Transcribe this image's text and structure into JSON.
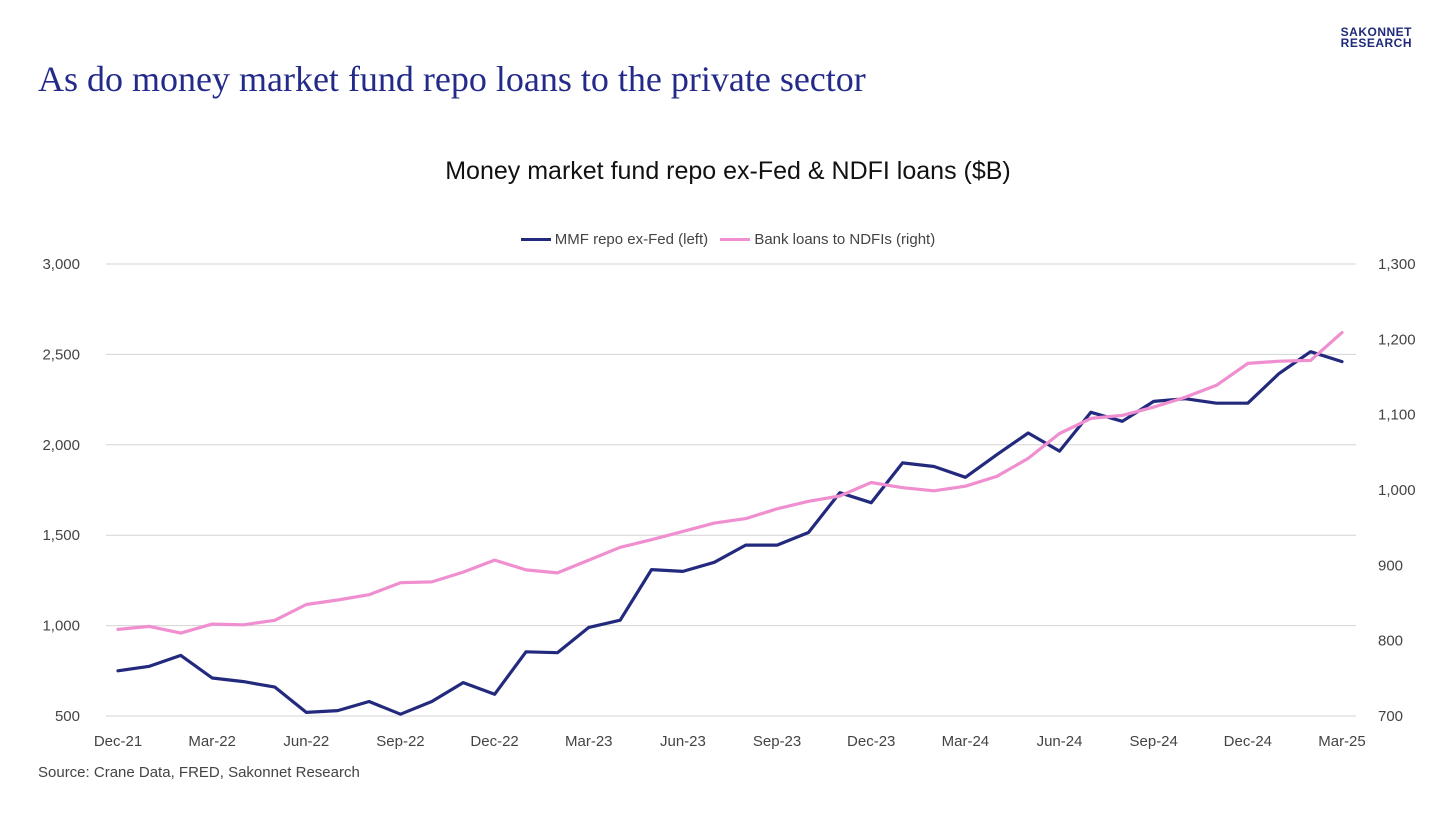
{
  "brand": {
    "line1": "SAKONNET",
    "line2": "RESEARCH"
  },
  "headline": "As do money market fund repo loans to the private sector",
  "source": "Source: Crane Data, FRED, Sakonnet Research",
  "chart_data": {
    "type": "line",
    "title": "Money market fund repo ex-Fed & NDFI loans ($B)",
    "xlabel": "",
    "ylabel": "",
    "grid": true,
    "legend_position": "top-center",
    "x": [
      "Dec-21",
      "Jan-22",
      "Feb-22",
      "Mar-22",
      "Apr-22",
      "May-22",
      "Jun-22",
      "Jul-22",
      "Aug-22",
      "Sep-22",
      "Oct-22",
      "Nov-22",
      "Dec-22",
      "Jan-23",
      "Feb-23",
      "Mar-23",
      "Apr-23",
      "May-23",
      "Jun-23",
      "Jul-23",
      "Aug-23",
      "Sep-23",
      "Oct-23",
      "Nov-23",
      "Dec-23",
      "Jan-24",
      "Feb-24",
      "Mar-24",
      "Apr-24",
      "May-24",
      "Jun-24",
      "Jul-24",
      "Aug-24",
      "Sep-24",
      "Oct-24",
      "Nov-24",
      "Dec-24",
      "Jan-25",
      "Feb-25",
      "Mar-25"
    ],
    "x_tick_labels": [
      "Dec-21",
      "Mar-22",
      "Jun-22",
      "Sep-22",
      "Dec-22",
      "Mar-23",
      "Jun-23",
      "Sep-23",
      "Dec-23",
      "Mar-24",
      "Jun-24",
      "Sep-24",
      "Dec-24",
      "Mar-25"
    ],
    "y_left": {
      "min": 500,
      "max": 3000,
      "ticks": [
        "500",
        "1,000",
        "1,500",
        "2,000",
        "2,500",
        "3,000"
      ]
    },
    "y_right": {
      "min": 700,
      "max": 1300,
      "ticks": [
        "700",
        "800",
        "900",
        "1,000",
        "1,100",
        "1,200",
        "1,300"
      ]
    },
    "series": [
      {
        "name": "MMF repo ex-Fed (left)",
        "axis": "left",
        "color": "#232a7e",
        "values": [
          750,
          775,
          835,
          710,
          690,
          660,
          520,
          530,
          580,
          510,
          580,
          685,
          620,
          855,
          850,
          990,
          1030,
          1310,
          1300,
          1350,
          1445,
          1445,
          1515,
          1735,
          1680,
          1900,
          1880,
          1820,
          1945,
          2065,
          1965,
          2180,
          2130,
          2240,
          2255,
          2230,
          2230,
          2395,
          2515,
          2460
        ]
      },
      {
        "name": "Bank loans to NDFIs (right)",
        "axis": "right",
        "color": "#f08fd0",
        "values": [
          815,
          819,
          810,
          822,
          821,
          827,
          848,
          854,
          861,
          877,
          878,
          891,
          907,
          894,
          890,
          907,
          924,
          934,
          945,
          956,
          962,
          975,
          985,
          992,
          1010,
          1003,
          999,
          1005,
          1018,
          1042,
          1075,
          1095,
          1099,
          1110,
          1123,
          1139,
          1168,
          1171,
          1172,
          1209
        ]
      }
    ]
  }
}
